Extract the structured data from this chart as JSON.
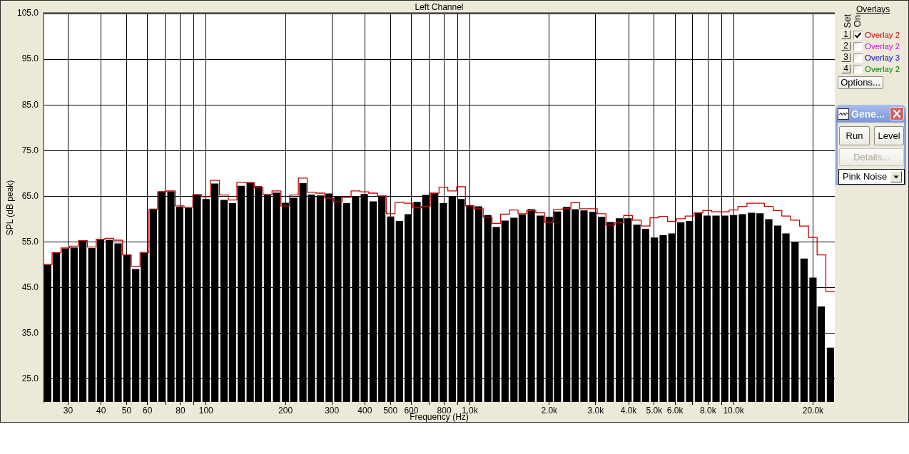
{
  "chart_data": {
    "type": "bar",
    "title": "Left Channel",
    "xlabel": "Frequency (Hz)",
    "ylabel": "SPL (dB peak)",
    "legend_title": "Overlays",
    "x": [
      25.1,
      27.1,
      29.3,
      31.6,
      34.1,
      36.9,
      39.8,
      43,
      46.4,
      50.1,
      54.1,
      58.4,
      63.1,
      68.1,
      73.6,
      79.4,
      85.8,
      92.6,
      100,
      108,
      117,
      126,
      136,
      147,
      158,
      171,
      185,
      200,
      215,
      233,
      251,
      271,
      293,
      316,
      341,
      369,
      398,
      430,
      464,
      501,
      541,
      584,
      631,
      681,
      736,
      794,
      858,
      926,
      1000,
      1080,
      1170,
      1260,
      1360,
      1470,
      1580,
      1710,
      1850,
      2000,
      2150,
      2330,
      2510,
      2710,
      2930,
      3160,
      3410,
      3690,
      3980,
      4300,
      4640,
      5010,
      5410,
      5840,
      6310,
      6810,
      7360,
      7940,
      8580,
      9260,
      10000,
      10800,
      11700,
      12600,
      13600,
      14700,
      15800,
      17100,
      18500,
      20000,
      21500,
      23300
    ],
    "series": [
      {
        "color": "#000000",
        "values": [
          50.0,
          52.6,
          53.6,
          53.8,
          55.3,
          53.7,
          55.6,
          55.5,
          54.7,
          52.2,
          49.1,
          52.6,
          62.3,
          66.1,
          66.1,
          62.7,
          62.5,
          65.3,
          64.4,
          67.8,
          64.2,
          63.5,
          67.3,
          67.9,
          67.2,
          65.4,
          65.8,
          63.6,
          64.7,
          67.9,
          65.4,
          65.2,
          65.6,
          65.0,
          63.5,
          65.0,
          65.5,
          63.9,
          64.9,
          60.6,
          59.6,
          61.1,
          63.8,
          65.3,
          65.7,
          63.5,
          65.0,
          64.4,
          63.1,
          62.8,
          60.9,
          58.3,
          59.7,
          60.3,
          61.0,
          62.2,
          60.8,
          60.5,
          61.7,
          62.7,
          62.2,
          61.9,
          61.6,
          60.5,
          59.4,
          60.2,
          60.2,
          58.8,
          57.9,
          56.0,
          56.5,
          56.9,
          59.3,
          59.6,
          61.4,
          60.8,
          60.8,
          60.8,
          60.9,
          61.1,
          61.4,
          61.3,
          60.0,
          58.6,
          56.9,
          55.0,
          51.4,
          47.2,
          40.9,
          31.9
        ]
      },
      {
        "type": "step",
        "name": "Overlay 2",
        "color": "#cc0000",
        "values": [
          50.1,
          52.7,
          53.7,
          54.1,
          55.3,
          53.9,
          55.6,
          55.8,
          55.4,
          52.2,
          49.7,
          52.7,
          62.1,
          66.0,
          66.2,
          62.9,
          62.6,
          65.4,
          64.9,
          68.5,
          65.3,
          64.2,
          68.1,
          68.0,
          66.9,
          65.4,
          66.2,
          62.9,
          65.3,
          69.0,
          65.9,
          65.7,
          64.6,
          63.8,
          64.8,
          66.2,
          66.0,
          65.7,
          65.1,
          61.2,
          63.7,
          63.5,
          62.5,
          62.8,
          65.7,
          67.0,
          66.2,
          67.1,
          62.9,
          62.3,
          60.4,
          59.1,
          61.1,
          62.0,
          61.2,
          61.9,
          61.4,
          59.3,
          62.1,
          62.3,
          63.6,
          62.3,
          62.3,
          61.2,
          58.7,
          59.2,
          60.8,
          59.8,
          58.5,
          60.3,
          60.6,
          59.5,
          60.1,
          60.7,
          61.4,
          61.9,
          61.6,
          61.6,
          62.0,
          62.8,
          63.5,
          63.5,
          62.8,
          61.9,
          60.7,
          59.8,
          58.5,
          56.0,
          52.2,
          44.2
        ]
      },
      {
        "type": "step",
        "name": "Overlay 2",
        "color": "#d400d4",
        "values": [
          null,
          null,
          null,
          null,
          null,
          null,
          null,
          null,
          null,
          null,
          null,
          null,
          null,
          null,
          null,
          null,
          null,
          null,
          null,
          null,
          null,
          null,
          null,
          null,
          null,
          null,
          null,
          null,
          null,
          null,
          null,
          null,
          null,
          null,
          null,
          null,
          null,
          null,
          null,
          null,
          null,
          null,
          null,
          null,
          null,
          null,
          null,
          null,
          null,
          null,
          null,
          null,
          null,
          null,
          null,
          null,
          null,
          null,
          null,
          null,
          null,
          null,
          null,
          null,
          null,
          null,
          null,
          null,
          null,
          null,
          null,
          null,
          null,
          null,
          null,
          null,
          null,
          null,
          null,
          null,
          null,
          null,
          null,
          null,
          null,
          null,
          null,
          null,
          null,
          null
        ]
      },
      {
        "type": "step",
        "name": "Overlay 3",
        "color": "#0000c0",
        "values": [
          null,
          null,
          null,
          null,
          null,
          null,
          null,
          null,
          null,
          null,
          null,
          null,
          null,
          null,
          null,
          null,
          null,
          null,
          null,
          null,
          null,
          null,
          null,
          null,
          null,
          null,
          null,
          null,
          null,
          null,
          null,
          null,
          null,
          null,
          null,
          null,
          null,
          null,
          null,
          null,
          null,
          null,
          null,
          null,
          null,
          null,
          null,
          null,
          null,
          null,
          null,
          null,
          null,
          null,
          null,
          null,
          null,
          null,
          null,
          null,
          null,
          null,
          null,
          null,
          null,
          null,
          null,
          null,
          null,
          null,
          null,
          null,
          null,
          null,
          null,
          null,
          null,
          null,
          null,
          null,
          null,
          null,
          null,
          null,
          null,
          null,
          null,
          null,
          null,
          null
        ]
      },
      {
        "type": "step",
        "name": "Overlay 2",
        "color": "#008000",
        "values": [
          null,
          null,
          null,
          null,
          null,
          null,
          null,
          null,
          null,
          null,
          null,
          null,
          null,
          null,
          null,
          null,
          null,
          null,
          null,
          null,
          null,
          null,
          null,
          null,
          null,
          null,
          null,
          null,
          null,
          null,
          null,
          null,
          null,
          null,
          null,
          null,
          null,
          null,
          null,
          null,
          null,
          null,
          null,
          null,
          null,
          null,
          null,
          null,
          null,
          null,
          null,
          null,
          null,
          null,
          null,
          null,
          null,
          null,
          null,
          null,
          null,
          null,
          null,
          null,
          null,
          null,
          null,
          null,
          null,
          null,
          null,
          null,
          null,
          null,
          null,
          null,
          null,
          null,
          null,
          null,
          null,
          null,
          null,
          null,
          null,
          null,
          null,
          null,
          null,
          null
        ]
      }
    ],
    "log": "x",
    "xlim": [
      24.2,
      24200
    ],
    "xticks": [
      30,
      40,
      50,
      60,
      {
        "value": 70,
        "label": null
      },
      80,
      {
        "value": 90,
        "label": null
      },
      100,
      200,
      300,
      400,
      500,
      600,
      {
        "value": 700,
        "label": null
      },
      800,
      {
        "value": 900,
        "label": null
      },
      {
        "value": 1000,
        "label": "1.0k"
      },
      {
        "value": 2000,
        "label": "2.0k"
      },
      {
        "value": 3000,
        "label": "3.0k"
      },
      {
        "value": 4000,
        "label": "4.0k"
      },
      {
        "value": 5000,
        "label": "5.0k"
      },
      {
        "value": 6000,
        "label": "6.0k"
      },
      {
        "value": 7000,
        "label": null
      },
      {
        "value": 8000,
        "label": "8.0k"
      },
      {
        "value": 9000,
        "label": null
      },
      {
        "value": 10000,
        "label": "10.0k"
      },
      {
        "value": 20000,
        "label": "20.0k"
      }
    ],
    "ylim": [
      20,
      105
    ],
    "yticks": [
      {
        "value": 25,
        "label": "25.0"
      },
      {
        "value": 35,
        "label": "35.0"
      },
      {
        "value": 45,
        "label": "45.0"
      },
      {
        "value": 55,
        "label": "55.0"
      },
      {
        "value": 65,
        "label": "65.0"
      },
      {
        "value": 75,
        "label": "75.0"
      },
      {
        "value": 85,
        "label": "85.0"
      },
      {
        "value": 95,
        "label": "95.0"
      },
      {
        "value": 105,
        "label": "105.0"
      }
    ],
    "grid": true,
    "legend": "top right",
    "annotations": [
      "Set",
      "On",
      "1",
      "2",
      "3",
      "4",
      "Options...",
      "Gene...",
      "Run",
      "Level",
      "Details...",
      "Pink Noise"
    ]
  }
}
